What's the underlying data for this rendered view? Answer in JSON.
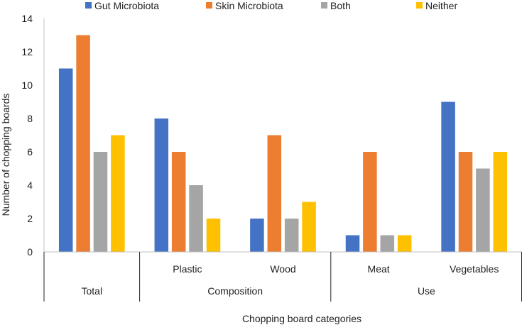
{
  "chart_data": {
    "type": "bar",
    "title": "",
    "xlabel": "Chopping board categories",
    "ylabel": "Number of chopping boards",
    "ylim": [
      0,
      14
    ],
    "yticks": [
      0,
      2,
      4,
      6,
      8,
      10,
      12,
      14
    ],
    "grid": false,
    "legend_position": "top",
    "categories": [
      "Total",
      "Plastic",
      "Wood",
      "Meat",
      "Vegetables"
    ],
    "category_groups": [
      {
        "label": "Total",
        "members": [
          "Total"
        ]
      },
      {
        "label": "Composition",
        "members": [
          "Plastic",
          "Wood"
        ]
      },
      {
        "label": "Use",
        "members": [
          "Meat",
          "Vegetables"
        ]
      }
    ],
    "series": [
      {
        "name": "Gut Microbiota",
        "color": "#4472C4",
        "values": [
          11,
          8,
          2,
          1,
          9
        ]
      },
      {
        "name": "Skin Microbiota",
        "color": "#ED7D31",
        "values": [
          13,
          6,
          7,
          6,
          6
        ]
      },
      {
        "name": "Both",
        "color": "#A5A5A5",
        "values": [
          6,
          4,
          2,
          1,
          5
        ]
      },
      {
        "name": "Neither",
        "color": "#FFC000",
        "values": [
          7,
          2,
          3,
          1,
          6
        ]
      }
    ]
  }
}
